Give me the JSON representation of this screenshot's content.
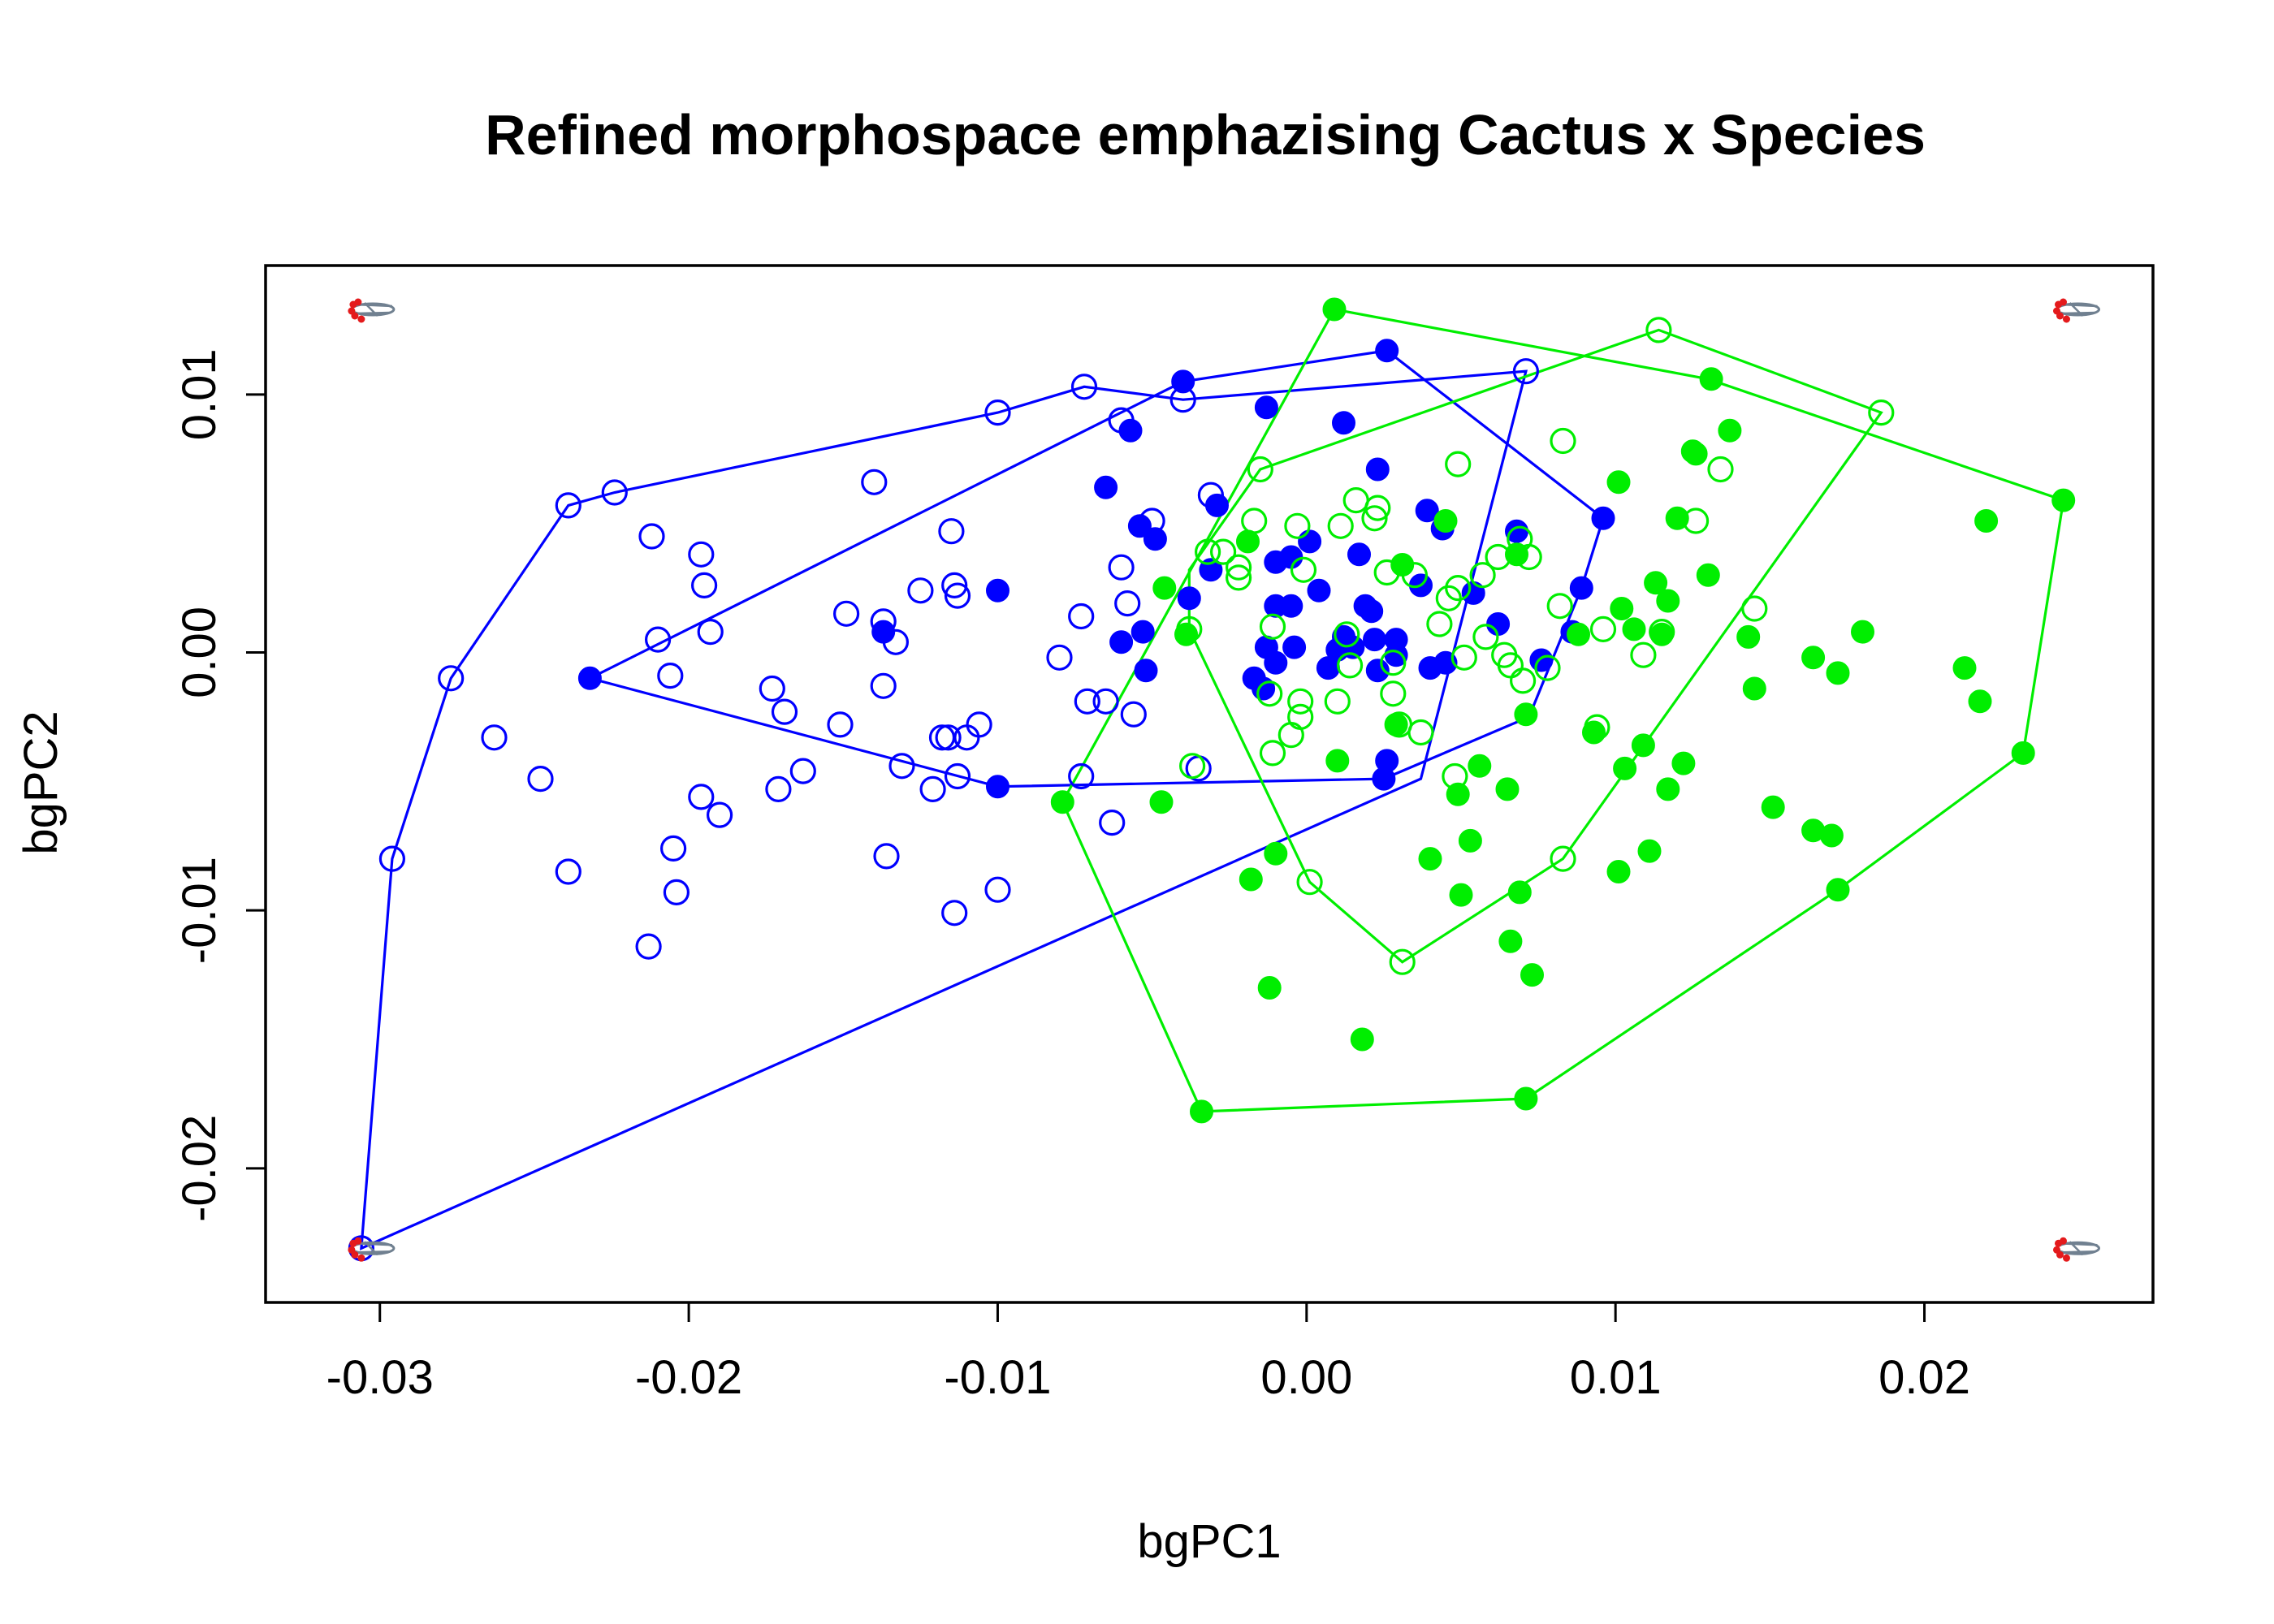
{
  "chart_data": {
    "type": "scatter",
    "title": "Refined morphospace emphazising Cactus x Species",
    "xlabel": "bgPC1",
    "ylabel": "bgPC2",
    "xlim": [
      -0.0337,
      0.0274
    ],
    "ylim": [
      -0.0252,
      0.015
    ],
    "xticks": [
      -0.03,
      -0.02,
      -0.01,
      0.0,
      0.01,
      0.02
    ],
    "xtick_labels": [
      "-0.03",
      "-0.02",
      "-0.01",
      "0.00",
      "0.01",
      "0.02"
    ],
    "yticks": [
      -0.02,
      -0.01,
      0.0,
      0.01
    ],
    "ytick_labels": [
      "-0.02",
      "-0.01",
      "0.00",
      "0.01"
    ],
    "grid": false,
    "series": [
      {
        "color": "#0000FF",
        "marker": "open-circle",
        "points": [
          [
            -0.0306,
            -0.0231
          ],
          [
            -0.0296,
            -0.008
          ],
          [
            -0.0277,
            -0.001
          ],
          [
            -0.0263,
            -0.0033
          ],
          [
            -0.0248,
            -0.0049
          ],
          [
            -0.0239,
            0.0057
          ],
          [
            -0.0239,
            -0.0085
          ],
          [
            -0.0224,
            0.0062
          ],
          [
            -0.0212,
            0.0045
          ],
          [
            -0.0213,
            -0.0114
          ],
          [
            -0.021,
            0.0005
          ],
          [
            -0.0206,
            -0.0009
          ],
          [
            -0.0205,
            -0.0076
          ],
          [
            -0.0204,
            -0.0093
          ],
          [
            -0.0196,
            0.0038
          ],
          [
            -0.0195,
            0.0026
          ],
          [
            -0.0196,
            -0.0056
          ],
          [
            -0.0193,
            0.0008
          ],
          [
            -0.019,
            -0.0063
          ],
          [
            -0.0173,
            -0.0014
          ],
          [
            -0.0171,
            -0.0053
          ],
          [
            -0.0169,
            -0.0023
          ],
          [
            -0.0163,
            -0.0046
          ],
          [
            -0.0151,
            -0.0028
          ],
          [
            -0.0149,
            0.0015
          ],
          [
            -0.014,
            0.0066
          ],
          [
            -0.0137,
            0.0012
          ],
          [
            -0.0137,
            -0.0013
          ],
          [
            -0.0136,
            -0.0079
          ],
          [
            -0.0133,
            0.0004
          ],
          [
            -0.0131,
            -0.0044
          ],
          [
            -0.0125,
            0.0024
          ],
          [
            -0.0121,
            -0.0053
          ],
          [
            -0.0118,
            -0.0033
          ],
          [
            -0.0116,
            -0.0033
          ],
          [
            -0.0115,
            0.0047
          ],
          [
            -0.0114,
            -0.0101
          ],
          [
            -0.0114,
            0.0026
          ],
          [
            -0.0113,
            0.0022
          ],
          [
            -0.0113,
            -0.0048
          ],
          [
            -0.011,
            -0.0033
          ],
          [
            -0.0106,
            -0.0028
          ],
          [
            -0.01,
            0.0093
          ],
          [
            -0.01,
            -0.0092
          ],
          [
            -0.008,
            -0.0002
          ],
          [
            -0.0072,
            0.0103
          ],
          [
            -0.0073,
            0.0014
          ],
          [
            -0.0071,
            -0.0019
          ],
          [
            -0.0073,
            -0.0048
          ],
          [
            -0.0065,
            -0.0019
          ],
          [
            -0.006,
            0.009
          ],
          [
            -0.0063,
            -0.0066
          ],
          [
            -0.006,
            0.0033
          ],
          [
            -0.0058,
            0.0019
          ],
          [
            -0.0056,
            -0.0024
          ],
          [
            -0.005,
            0.0051
          ],
          [
            -0.004,
            0.0098
          ],
          [
            -0.0031,
            0.0061
          ],
          [
            -0.0035,
            -0.0045
          ],
          [
            0.0071,
            0.0109
          ]
        ]
      },
      {
        "color": "#0000FF",
        "marker": "filled-circle",
        "points": [
          [
            -0.0232,
            -0.001
          ],
          [
            -0.0137,
            0.0008
          ],
          [
            -0.01,
            0.0024
          ],
          [
            -0.01,
            -0.0052
          ],
          [
            -0.0065,
            0.0064
          ],
          [
            -0.0057,
            0.0086
          ],
          [
            -0.0054,
            0.0049
          ],
          [
            -0.0049,
            0.0044
          ],
          [
            -0.0053,
            0.0008
          ],
          [
            -0.006,
            0.0004
          ],
          [
            -0.0052,
            -0.0007
          ],
          [
            -0.004,
            0.0105
          ],
          [
            -0.0029,
            0.0057
          ],
          [
            -0.0031,
            0.0032
          ],
          [
            -0.0038,
            0.0021
          ],
          [
            -0.0013,
            0.0095
          ],
          [
            0.0012,
            0.0089
          ],
          [
            0.0026,
            0.0117
          ],
          [
            0.0023,
            0.0071
          ],
          [
            0.0029,
            0.0005
          ],
          [
            -0.001,
            0.0035
          ],
          [
            -0.0005,
            0.0037
          ],
          [
            0.0001,
            0.0043
          ],
          [
            -0.0005,
            0.0018
          ],
          [
            -0.001,
            0.0018
          ],
          [
            0.0004,
            0.0024
          ],
          [
            0.0017,
            0.0038
          ],
          [
            0.0019,
            0.0018
          ],
          [
            0.0021,
            0.0016
          ],
          [
            0.0012,
            0.0006
          ],
          [
            0.0015,
            0.0002
          ],
          [
            0.0022,
            0.0005
          ],
          [
            0.001,
            0.0001
          ],
          [
            -0.0004,
            0.0002
          ],
          [
            -0.0013,
            0.0002
          ],
          [
            -0.001,
            -0.0004
          ],
          [
            -0.0017,
            -0.001
          ],
          [
            -0.0014,
            -0.0014
          ],
          [
            0.0007,
            -0.0006
          ],
          [
            0.0023,
            -0.0007
          ],
          [
            0.0029,
            -0.0001
          ],
          [
            0.0037,
            0.0026
          ],
          [
            0.004,
            -0.0006
          ],
          [
            0.0045,
            -0.0004
          ],
          [
            0.0039,
            0.0055
          ],
          [
            0.0044,
            0.0048
          ],
          [
            0.0068,
            0.0047
          ],
          [
            0.0086,
            0.0008
          ],
          [
            0.0089,
            0.0025
          ],
          [
            0.0096,
            0.0052
          ],
          [
            0.0076,
            -0.0003
          ],
          [
            0.0026,
            -0.0042
          ],
          [
            0.0025,
            -0.0049
          ],
          [
            0.0054,
            0.0023
          ],
          [
            0.0062,
            0.0011
          ]
        ]
      },
      {
        "color": "#00EE00",
        "marker": "open-circle",
        "points": [
          [
            -0.0038,
            0.0009
          ],
          [
            -0.0032,
            0.0039
          ],
          [
            -0.0027,
            0.0039
          ],
          [
            -0.0022,
            0.0033
          ],
          [
            -0.0022,
            0.0029
          ],
          [
            -0.0017,
            0.0051
          ],
          [
            -0.0015,
            0.0071
          ],
          [
            -0.0011,
            0.001
          ],
          [
            -0.0012,
            -0.0016
          ],
          [
            -0.0011,
            -0.0039
          ],
          [
            -0.0003,
            0.0049
          ],
          [
            -0.0001,
            0.0032
          ],
          [
            -0.0002,
            -0.0019
          ],
          [
            -0.0002,
            -0.0025
          ],
          [
            -0.0005,
            -0.0032
          ],
          [
            0.0001,
            -0.0089
          ],
          [
            0.0011,
            0.0049
          ],
          [
            0.0013,
            0.0007
          ],
          [
            0.001,
            -0.0019
          ],
          [
            0.0014,
            -0.0005
          ],
          [
            0.0016,
            0.0059
          ],
          [
            0.0022,
            0.0052
          ],
          [
            0.0023,
            0.0056
          ],
          [
            0.0026,
            0.0031
          ],
          [
            0.0028,
            -0.0004
          ],
          [
            0.0028,
            -0.0016
          ],
          [
            0.003,
            -0.0028
          ],
          [
            0.0031,
            -0.012
          ],
          [
            0.0035,
            0.003
          ],
          [
            0.0043,
            0.0011
          ],
          [
            0.0046,
            0.0021
          ],
          [
            0.0049,
            0.0073
          ],
          [
            0.0049,
            0.0025
          ],
          [
            0.0051,
            -0.0002
          ],
          [
            0.0048,
            -0.0048
          ],
          [
            0.0037,
            -0.0031
          ],
          [
            0.0058,
            0.0006
          ],
          [
            0.0057,
            0.003
          ],
          [
            0.0062,
            0.0037
          ],
          [
            0.0064,
            -0.0001
          ],
          [
            0.0069,
            0.0044
          ],
          [
            0.0072,
            0.0037
          ],
          [
            0.007,
            -0.0011
          ],
          [
            0.0078,
            -0.0006
          ],
          [
            0.0082,
            0.0018
          ],
          [
            0.0083,
            0.0082
          ],
          [
            0.0083,
            -0.008
          ],
          [
            0.0096,
            0.0009
          ],
          [
            0.0094,
            -0.0029
          ],
          [
            0.0109,
            -0.0001
          ],
          [
            0.0114,
            0.0125
          ],
          [
            0.0115,
            0.0008
          ],
          [
            0.0126,
            0.0051
          ],
          [
            0.0134,
            0.0071
          ],
          [
            0.0145,
            0.0017
          ],
          [
            0.0186,
            0.0093
          ],
          [
            0.0066,
            -0.0005
          ],
          [
            -0.0037,
            -0.0044
          ]
        ]
      },
      {
        "color": "#00EE00",
        "marker": "filled-circle",
        "points": [
          [
            0.0009,
            0.0133
          ],
          [
            -0.0079,
            -0.0058
          ],
          [
            -0.0034,
            -0.0178
          ],
          [
            -0.0046,
            0.0025
          ],
          [
            -0.0047,
            -0.0058
          ],
          [
            -0.0039,
            0.0007
          ],
          [
            -0.0019,
            0.0043
          ],
          [
            -0.0018,
            -0.0088
          ],
          [
            -0.001,
            -0.0078
          ],
          [
            -0.0012,
            -0.013
          ],
          [
            0.001,
            -0.0042
          ],
          [
            0.0018,
            -0.015
          ],
          [
            0.0029,
            -0.0028
          ],
          [
            0.0031,
            0.0034
          ],
          [
            0.004,
            -0.008
          ],
          [
            0.0045,
            0.0051
          ],
          [
            0.0049,
            -0.0055
          ],
          [
            0.005,
            -0.0094
          ],
          [
            0.0053,
            -0.0073
          ],
          [
            0.0056,
            -0.0044
          ],
          [
            0.0065,
            -0.0053
          ],
          [
            0.0066,
            -0.0112
          ],
          [
            0.0068,
            0.0038
          ],
          [
            0.0069,
            -0.0093
          ],
          [
            0.0071,
            -0.0024
          ],
          [
            0.0071,
            -0.0173
          ],
          [
            0.0073,
            -0.0125
          ],
          [
            0.0088,
            0.0007
          ],
          [
            0.0093,
            -0.0031
          ],
          [
            0.0101,
            0.0066
          ],
          [
            0.0102,
            0.0017
          ],
          [
            0.0103,
            -0.0045
          ],
          [
            0.0101,
            -0.0085
          ],
          [
            0.0106,
            0.0009
          ],
          [
            0.0109,
            -0.0036
          ],
          [
            0.0111,
            -0.0077
          ],
          [
            0.0113,
            0.0027
          ],
          [
            0.0115,
            0.0007
          ],
          [
            0.0117,
            -0.0053
          ],
          [
            0.0117,
            0.002
          ],
          [
            0.012,
            0.0052
          ],
          [
            0.0122,
            -0.0043
          ],
          [
            0.0125,
            0.0078
          ],
          [
            0.0126,
            0.0077
          ],
          [
            0.013,
            0.003
          ],
          [
            0.0131,
            0.0106
          ],
          [
            0.0137,
            0.0086
          ],
          [
            0.0143,
            0.0006
          ],
          [
            0.0145,
            -0.0014
          ],
          [
            0.0151,
            -0.006
          ],
          [
            0.0164,
            -0.0002
          ],
          [
            0.0164,
            -0.0069
          ],
          [
            0.017,
            -0.0071
          ],
          [
            0.0172,
            -0.0092
          ],
          [
            0.0172,
            -0.0008
          ],
          [
            0.018,
            0.0008
          ],
          [
            0.0213,
            -0.0006
          ],
          [
            0.0218,
            -0.0019
          ],
          [
            0.022,
            0.0051
          ],
          [
            0.0232,
            -0.0039
          ],
          [
            0.0245,
            0.0059
          ]
        ]
      }
    ],
    "hulls": [
      {
        "color": "#0000FF",
        "vertices": [
          [
            -0.0306,
            -0.0231
          ],
          [
            -0.0296,
            -0.008
          ],
          [
            -0.0277,
            -0.001
          ],
          [
            -0.0239,
            0.0057
          ],
          [
            -0.0224,
            0.0062
          ],
          [
            -0.01,
            0.0093
          ],
          [
            -0.0072,
            0.0103
          ],
          [
            -0.004,
            0.0098
          ],
          [
            0.0071,
            0.0109
          ],
          [
            0.0037,
            -0.0049
          ]
        ]
      },
      {
        "color": "#0000FF",
        "vertices": [
          [
            -0.0232,
            -0.001
          ],
          [
            -0.004,
            0.0105
          ],
          [
            0.0026,
            0.0117
          ],
          [
            0.0096,
            0.0052
          ],
          [
            0.0089,
            0.0025
          ],
          [
            0.0072,
            -0.0025
          ],
          [
            0.0025,
            -0.0049
          ],
          [
            -0.01,
            -0.0052
          ]
        ]
      },
      {
        "color": "#00EE00",
        "vertices": [
          [
            -0.0038,
            0.0032
          ],
          [
            -0.0015,
            0.0071
          ],
          [
            0.0114,
            0.0125
          ],
          [
            0.0186,
            0.0093
          ],
          [
            0.0083,
            -0.008
          ],
          [
            0.0031,
            -0.012
          ],
          [
            0.0001,
            -0.0089
          ],
          [
            -0.0038,
            0.0009
          ]
        ]
      },
      {
        "color": "#00EE00",
        "vertices": [
          [
            0.0009,
            0.0133
          ],
          [
            0.013,
            0.0106
          ],
          [
            0.0245,
            0.0059
          ],
          [
            0.0232,
            -0.0039
          ],
          [
            0.0172,
            -0.0092
          ],
          [
            0.0071,
            -0.0173
          ],
          [
            -0.0034,
            -0.0178
          ],
          [
            -0.0079,
            -0.0058
          ]
        ]
      }
    ],
    "corner_glyphs": [
      {
        "x": -0.0306,
        "y": 0.0133,
        "colors": [
          "#E41A1C",
          "#708090"
        ]
      },
      {
        "x": 0.0246,
        "y": 0.0133,
        "colors": [
          "#E41A1C",
          "#708090"
        ]
      },
      {
        "x": -0.0306,
        "y": -0.0231,
        "colors": [
          "#E41A1C",
          "#708090"
        ]
      },
      {
        "x": 0.0246,
        "y": -0.0231,
        "colors": [
          "#E41A1C",
          "#708090"
        ]
      }
    ]
  }
}
